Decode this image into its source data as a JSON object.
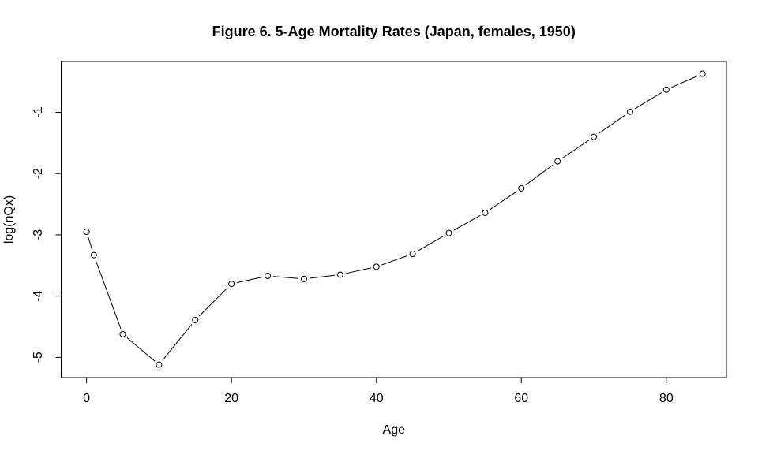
{
  "chart_data": {
    "type": "line",
    "title": "Figure 6. 5-Age Mortality Rates (Japan, females, 1950)",
    "xlabel": "Age",
    "ylabel": "log(nQx)",
    "series": [
      {
        "name": "log(nQx)",
        "x": [
          0,
          1,
          5,
          10,
          15,
          20,
          25,
          30,
          35,
          40,
          45,
          50,
          55,
          60,
          65,
          70,
          75,
          80,
          85
        ],
        "y": [
          -2.95,
          -3.33,
          -4.62,
          -5.12,
          -4.39,
          -3.8,
          -3.67,
          -3.72,
          -3.65,
          -3.52,
          -3.31,
          -2.97,
          -2.64,
          -2.24,
          -1.8,
          -1.4,
          -0.99,
          -0.63,
          -0.37
        ]
      }
    ],
    "x_ticks": [
      0,
      20,
      40,
      60,
      80
    ],
    "y_ticks": [
      -1,
      -2,
      -3,
      -4,
      -5
    ],
    "xlim": [
      -3.5,
      88.3
    ],
    "ylim": [
      -5.33,
      -0.17
    ],
    "grid": "off",
    "legend": "none",
    "marker": "open-circle",
    "line_style": "segments-with-marker-gaps",
    "colors": {
      "foreground": "#000000",
      "background": "#ffffff"
    }
  }
}
